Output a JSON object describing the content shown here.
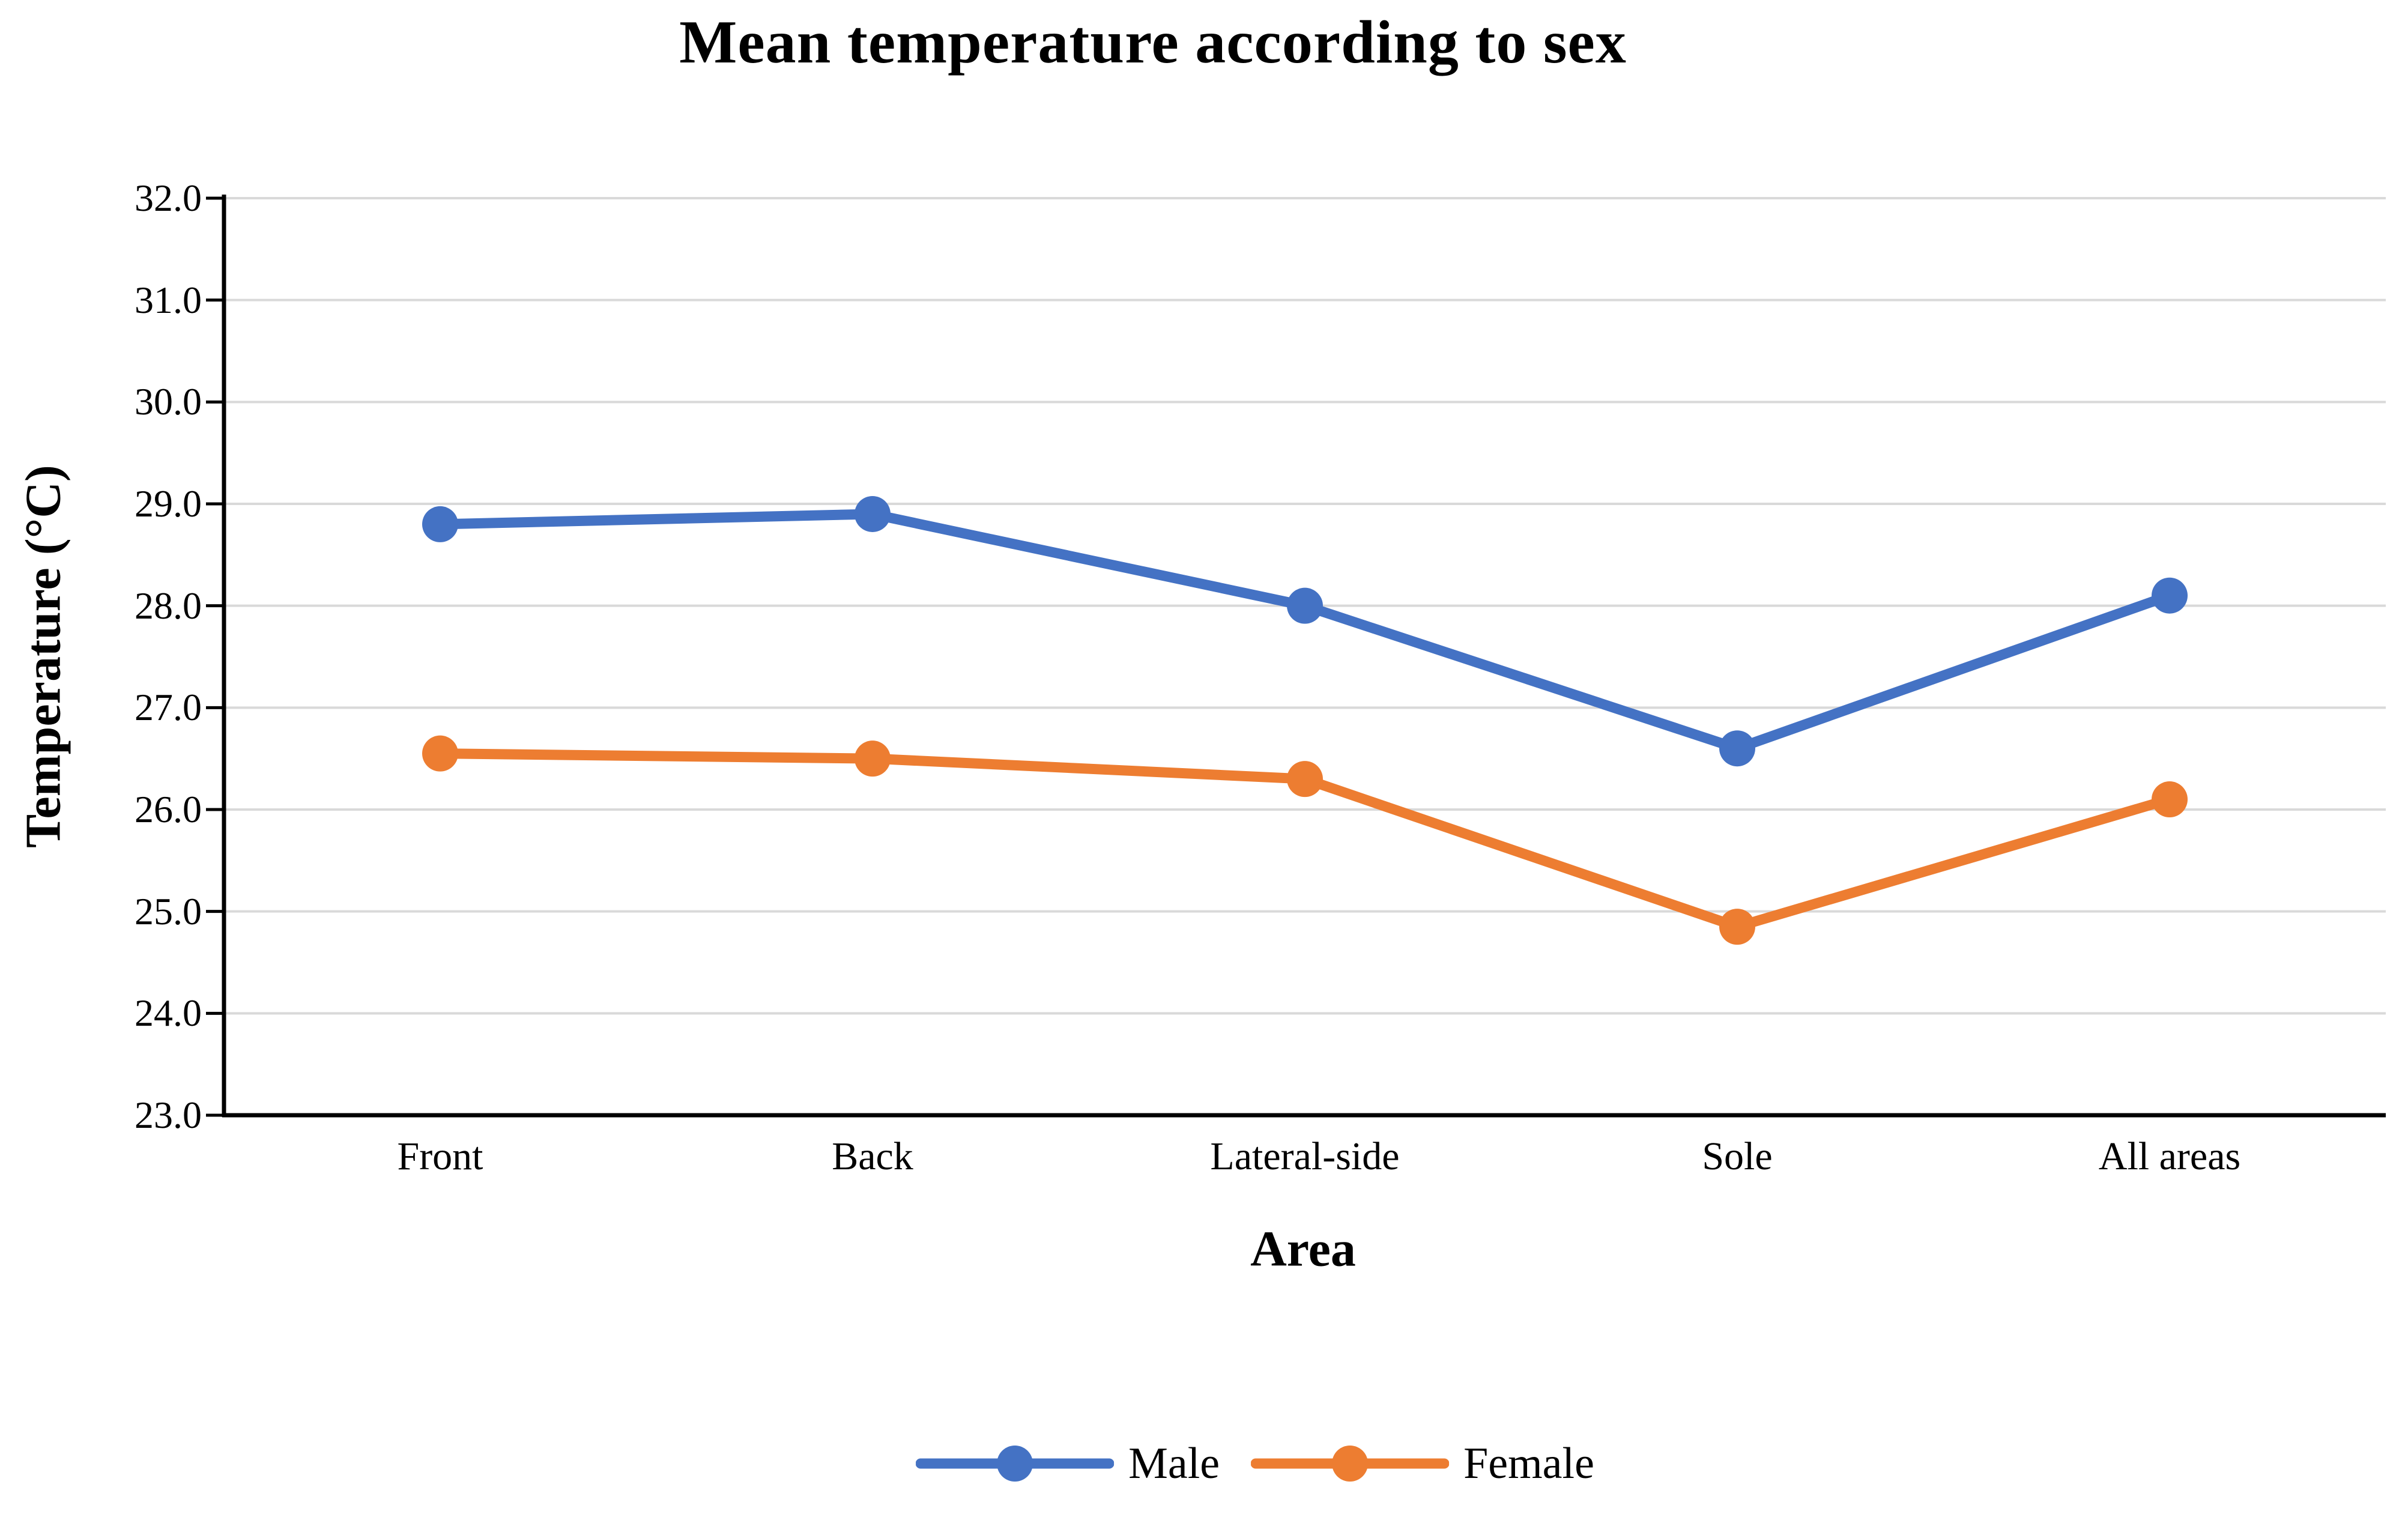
{
  "figure": {
    "title": "Mean temperature according to sex",
    "background_color": "#ffffff"
  },
  "chart_data": {
    "type": "line",
    "title": "Mean temperature according to sex",
    "xlabel": "Area",
    "ylabel": "Temperature (°C)",
    "categories": [
      "Front",
      "Back",
      "Lateral-side",
      "Sole",
      "All areas"
    ],
    "series": [
      {
        "name": "Male",
        "color": "#4472C4",
        "marker": "circle",
        "values": [
          28.8,
          28.9,
          28.0,
          26.6,
          28.1
        ]
      },
      {
        "name": "Female",
        "color": "#ED7D31",
        "marker": "circle",
        "values": [
          26.55,
          26.5,
          26.3,
          24.85,
          26.1
        ]
      }
    ],
    "ylim": [
      23.0,
      32.0
    ],
    "ytick_step": 1.0,
    "ytick_labels": [
      "23.0",
      "24.0",
      "25.0",
      "26.0",
      "27.0",
      "28.0",
      "29.0",
      "30.0",
      "31.0",
      "32.0"
    ],
    "grid": "horizontal",
    "gridline_color": "#D9D9D9",
    "axis_color": "#000000",
    "legend_position": "bottom",
    "legend_marker": "line-with-circle"
  }
}
